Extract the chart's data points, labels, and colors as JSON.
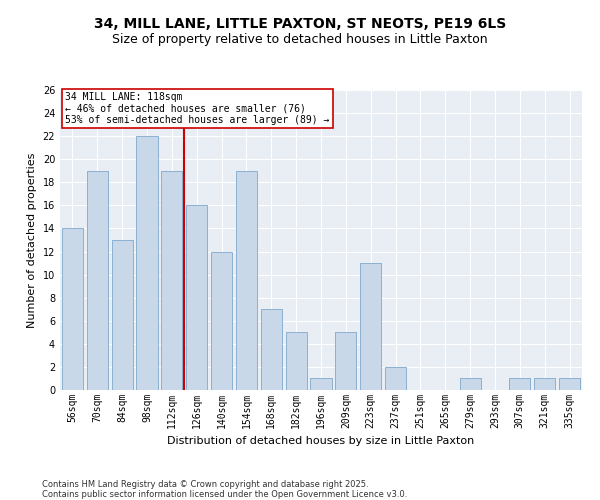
{
  "title": "34, MILL LANE, LITTLE PAXTON, ST NEOTS, PE19 6LS",
  "subtitle": "Size of property relative to detached houses in Little Paxton",
  "xlabel": "Distribution of detached houses by size in Little Paxton",
  "ylabel": "Number of detached properties",
  "categories": [
    "56sqm",
    "70sqm",
    "84sqm",
    "98sqm",
    "112sqm",
    "126sqm",
    "140sqm",
    "154sqm",
    "168sqm",
    "182sqm",
    "196sqm",
    "209sqm",
    "223sqm",
    "237sqm",
    "251sqm",
    "265sqm",
    "279sqm",
    "293sqm",
    "307sqm",
    "321sqm",
    "335sqm"
  ],
  "values": [
    14,
    19,
    13,
    22,
    19,
    16,
    12,
    19,
    7,
    5,
    1,
    5,
    11,
    2,
    0,
    0,
    1,
    0,
    1,
    1,
    1
  ],
  "bar_color": "#c8d8e8",
  "bar_edge_color": "#7fa8cc",
  "highlight_bin_index": 4,
  "vline_color": "#cc0000",
  "annotation_box_edge": "#cc0000",
  "annotation_line0": "34 MILL LANE: 118sqm",
  "annotation_line1": "← 46% of detached houses are smaller (76)",
  "annotation_line2": "53% of semi-detached houses are larger (89) →",
  "ylim": [
    0,
    26
  ],
  "yticks": [
    0,
    2,
    4,
    6,
    8,
    10,
    12,
    14,
    16,
    18,
    20,
    22,
    24,
    26
  ],
  "footer1": "Contains HM Land Registry data © Crown copyright and database right 2025.",
  "footer2": "Contains public sector information licensed under the Open Government Licence v3.0.",
  "plot_bg_color": "#e8eef4",
  "fig_bg_color": "#ffffff",
  "grid_color": "#ffffff",
  "title_fontsize": 10,
  "subtitle_fontsize": 9,
  "xlabel_fontsize": 8,
  "ylabel_fontsize": 8,
  "tick_fontsize": 7,
  "annotation_fontsize": 7,
  "footer_fontsize": 6
}
